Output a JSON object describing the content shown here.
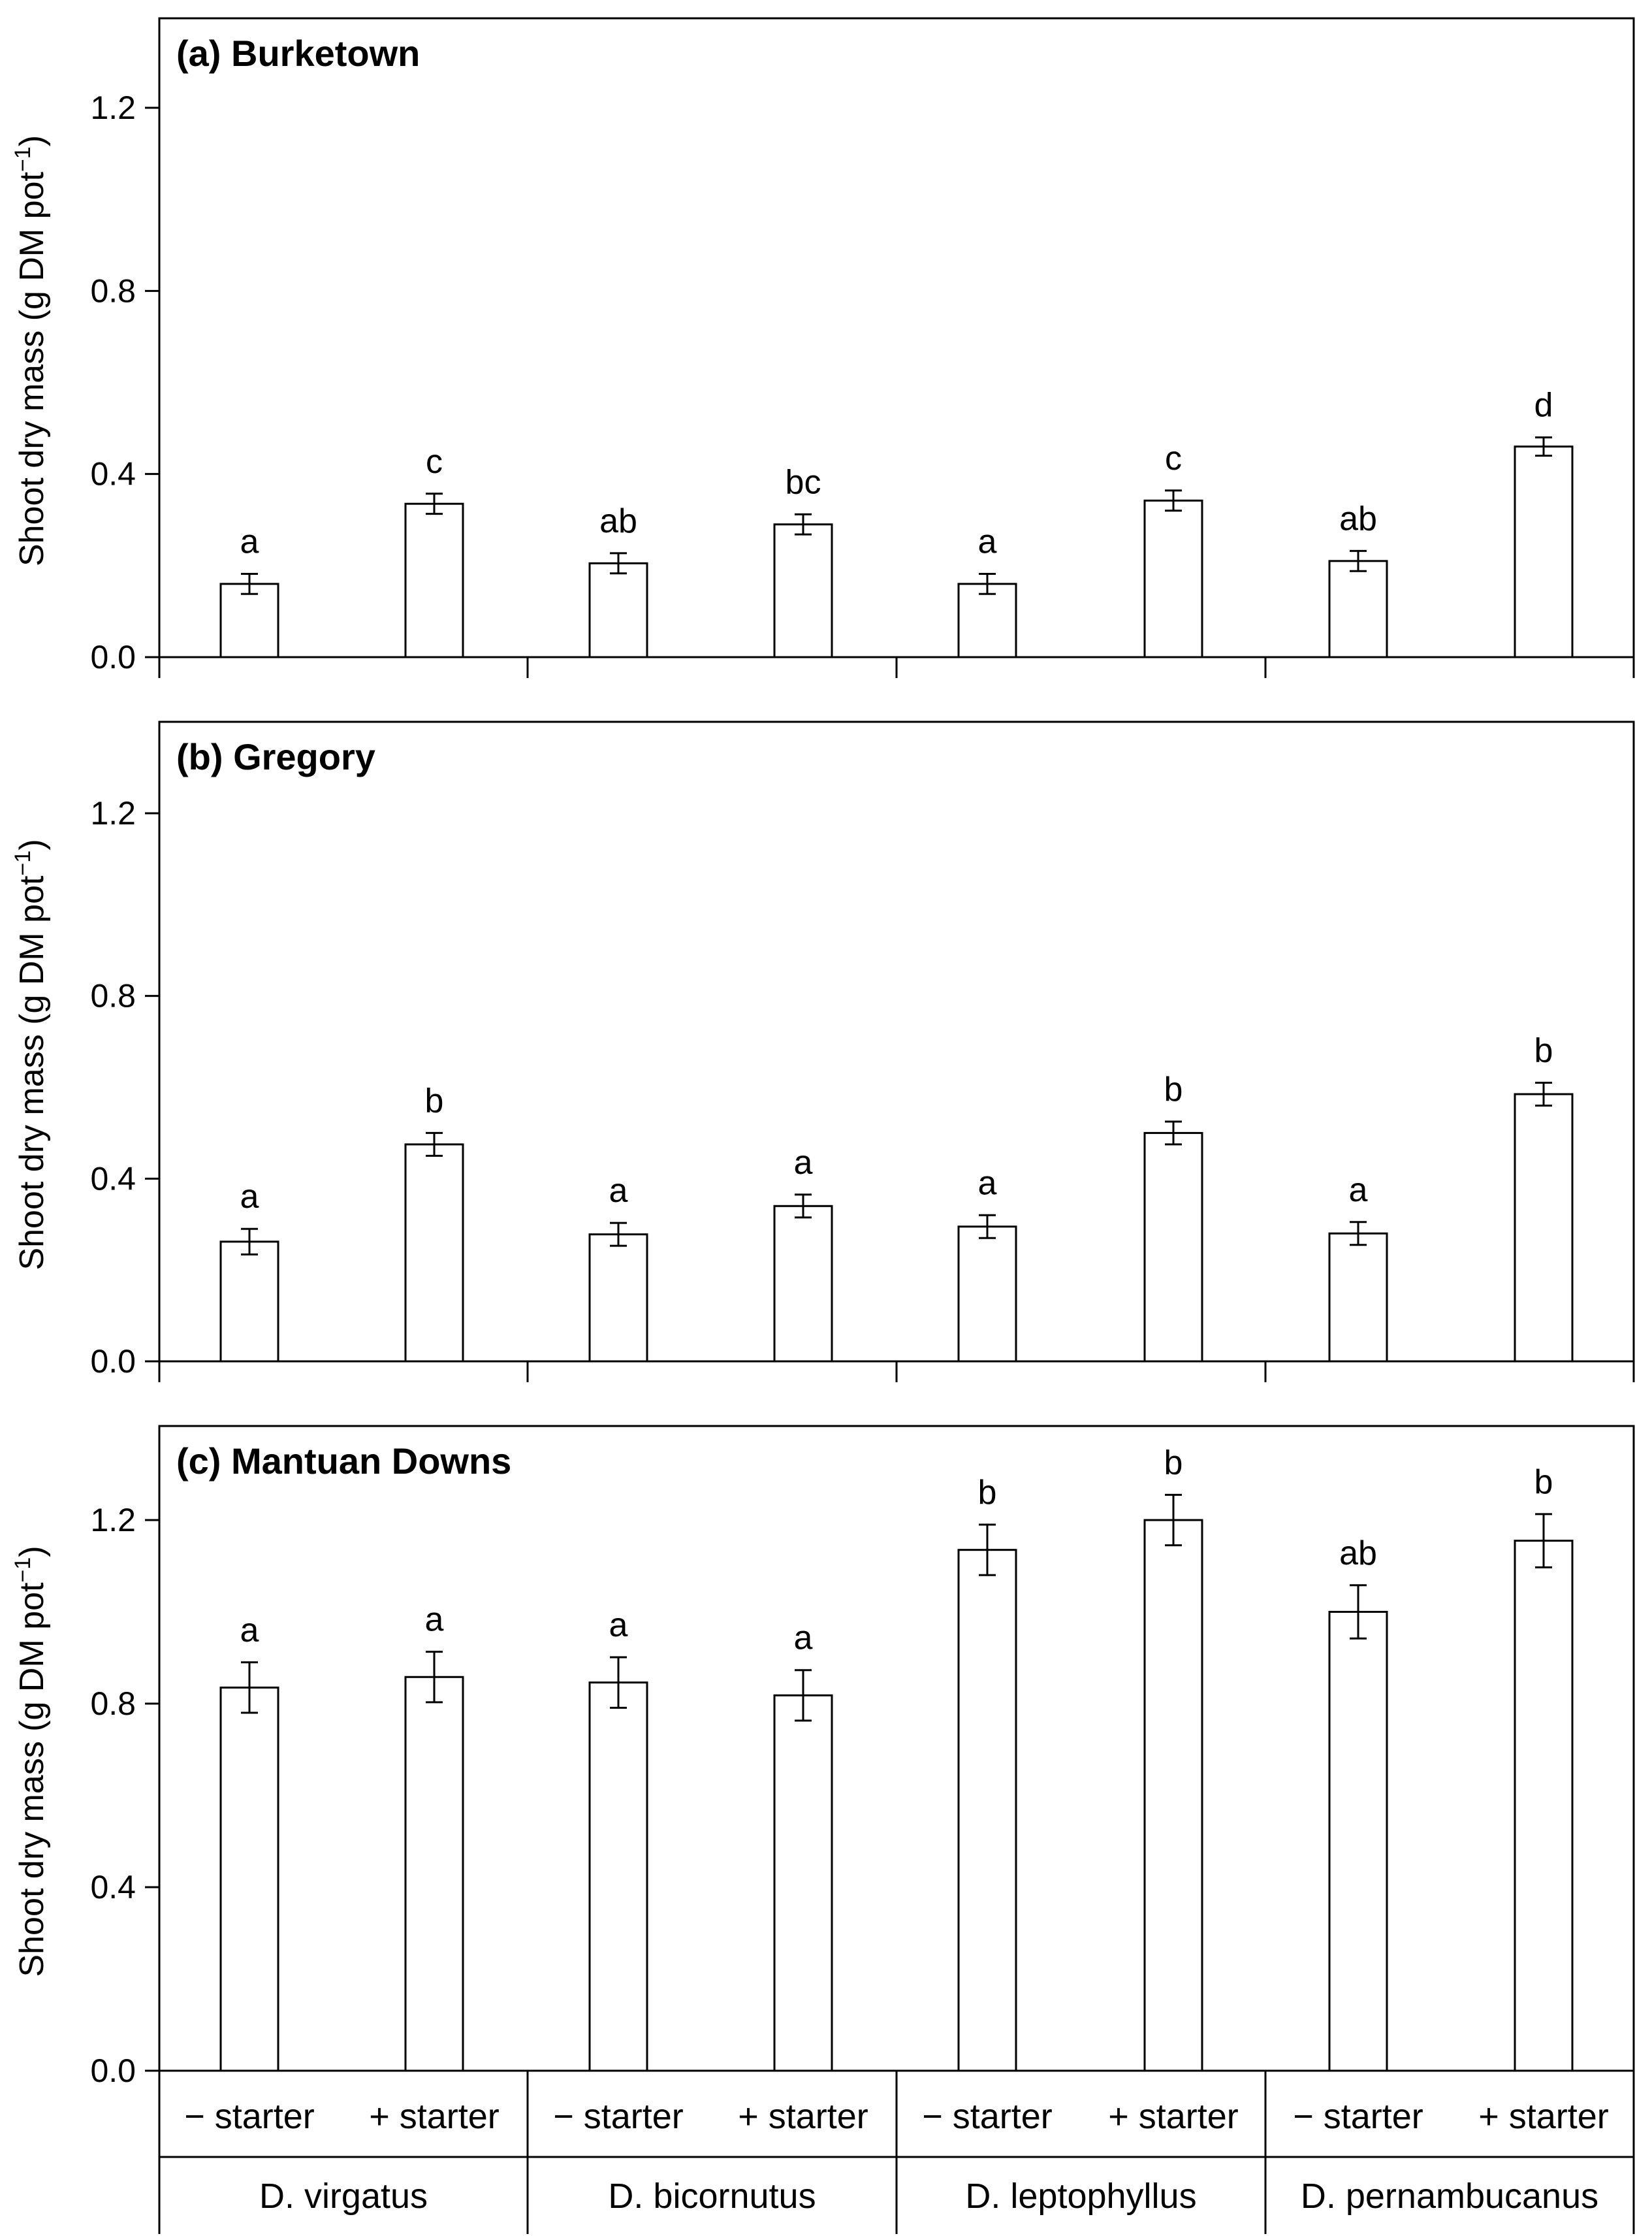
{
  "chart_data": {
    "type": "bar",
    "layout": "three stacked panels sharing x categories",
    "ylabel": "Shoot dry mass (g DM pot",
    "ylabel_superscript": "−1",
    "ylabel_end": ")",
    "ylim": [
      0,
      1.35
    ],
    "yticks": [
      "0.0",
      "0.4",
      "0.8",
      "1.2"
    ],
    "ytick_values": [
      0,
      0.4,
      0.8,
      1.2
    ],
    "categories": [
      "− starter",
      "+ starter",
      "− starter",
      "+ starter",
      "− starter",
      "+ starter",
      "− starter",
      "+ starter"
    ],
    "species": [
      "D. virgatus",
      "D. bicornutus",
      "D. leptophyllus",
      "D. pernambucanus"
    ],
    "panels": [
      {
        "title": "(a) Burketown",
        "values": [
          0.16,
          0.335,
          0.205,
          0.29,
          0.16,
          0.342,
          0.21,
          0.46
        ],
        "errors": [
          0.022,
          0.022,
          0.022,
          0.022,
          0.022,
          0.022,
          0.022,
          0.02
        ],
        "letters": [
          "a",
          "c",
          "ab",
          "bc",
          "a",
          "c",
          "ab",
          "d"
        ]
      },
      {
        "title": "(b) Gregory",
        "values": [
          0.262,
          0.475,
          0.278,
          0.34,
          0.295,
          0.5,
          0.28,
          0.585
        ],
        "errors": [
          0.028,
          0.025,
          0.025,
          0.025,
          0.025,
          0.025,
          0.025,
          0.025
        ],
        "letters": [
          "a",
          "b",
          "a",
          "a",
          "a",
          "b",
          "a",
          "b"
        ]
      },
      {
        "title": "(c) Mantuan Downs",
        "values": [
          0.835,
          0.858,
          0.846,
          0.818,
          1.135,
          1.2,
          1.0,
          1.155
        ],
        "errors": [
          0.055,
          0.055,
          0.055,
          0.055,
          0.055,
          0.055,
          0.058,
          0.058
        ],
        "letters": [
          "a",
          "a",
          "a",
          "a",
          "b",
          "b",
          "ab",
          "b"
        ]
      }
    ]
  }
}
